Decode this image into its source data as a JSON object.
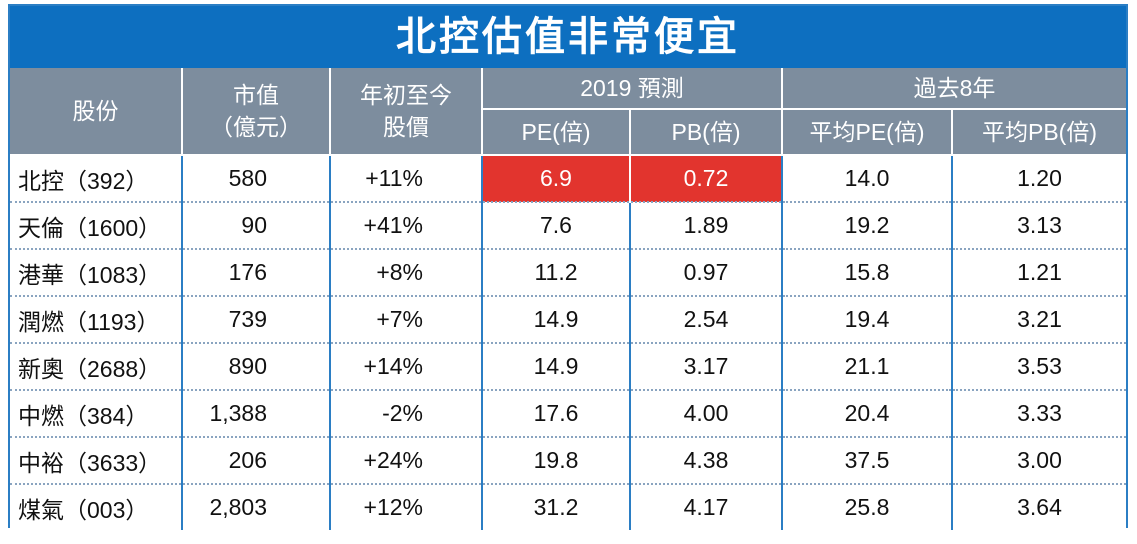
{
  "title": "北控估值非常便宜",
  "colors": {
    "title_bg": "#0d6fc0",
    "header_bg": "#7d8d9e",
    "highlight": "#e2342e",
    "border": "#2b7ec4"
  },
  "header": {
    "stock": "股份",
    "mktcap": [
      "市值",
      "（億元）"
    ],
    "ytd": [
      "年初至今",
      "股價"
    ],
    "forecast_group": "2019 預測",
    "past_group": "過去8年",
    "pe": "PE(倍)",
    "pb": "PB(倍)",
    "avg_pe": "平均PE(倍)",
    "avg_pb": "平均PB(倍)"
  },
  "rows": [
    {
      "stock": "北控（392）",
      "mktcap": "580",
      "ytd": "+11%",
      "pe": "6.9",
      "pb": "0.72",
      "avg_pe": "14.0",
      "avg_pb": "1.20",
      "highlight": true
    },
    {
      "stock": "天倫（1600）",
      "mktcap": "90",
      "ytd": "+41%",
      "pe": "7.6",
      "pb": "1.89",
      "avg_pe": "19.2",
      "avg_pb": "3.13"
    },
    {
      "stock": "港華（1083）",
      "mktcap": "176",
      "ytd": "+8%",
      "pe": "11.2",
      "pb": "0.97",
      "avg_pe": "15.8",
      "avg_pb": "1.21"
    },
    {
      "stock": "潤燃（1193）",
      "mktcap": "739",
      "ytd": "+7%",
      "pe": "14.9",
      "pb": "2.54",
      "avg_pe": "19.4",
      "avg_pb": "3.21"
    },
    {
      "stock": "新奧（2688）",
      "mktcap": "890",
      "ytd": "+14%",
      "pe": "14.9",
      "pb": "3.17",
      "avg_pe": "21.1",
      "avg_pb": "3.53"
    },
    {
      "stock": "中燃（384）",
      "mktcap": "1,388",
      "ytd": "-2%",
      "pe": "17.6",
      "pb": "4.00",
      "avg_pe": "20.4",
      "avg_pb": "3.33"
    },
    {
      "stock": "中裕（3633）",
      "mktcap": "206",
      "ytd": "+24%",
      "pe": "19.8",
      "pb": "4.38",
      "avg_pe": "37.5",
      "avg_pb": "3.00"
    },
    {
      "stock": "煤氣（003）",
      "mktcap": "2,803",
      "ytd": "+12%",
      "pe": "31.2",
      "pb": "4.17",
      "avg_pe": "25.8",
      "avg_pb": "3.64"
    }
  ]
}
